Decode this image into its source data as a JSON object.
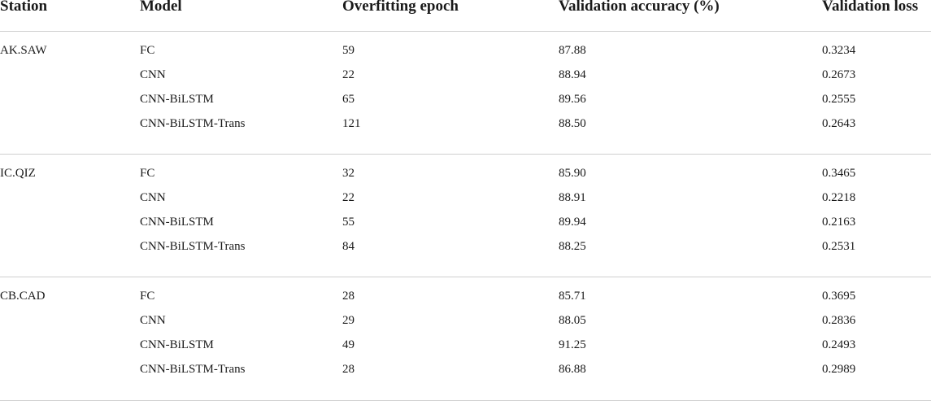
{
  "table": {
    "headers": {
      "station": "Station",
      "model": "Model",
      "epoch": "Overfitting epoch",
      "accuracy": "Validation accuracy (%)",
      "loss": "Validation loss"
    },
    "groups": [
      {
        "station": "AK.SAW",
        "rows": [
          {
            "model": "FC",
            "epoch": "59",
            "accuracy": "87.88",
            "loss": "0.3234"
          },
          {
            "model": "CNN",
            "epoch": "22",
            "accuracy": "88.94",
            "loss": "0.2673"
          },
          {
            "model": "CNN-BiLSTM",
            "epoch": "65",
            "accuracy": "89.56",
            "loss": "0.2555"
          },
          {
            "model": "CNN-BiLSTM-Trans",
            "epoch": "121",
            "accuracy": "88.50",
            "loss": "0.2643"
          }
        ]
      },
      {
        "station": "IC.QIZ",
        "rows": [
          {
            "model": "FC",
            "epoch": "32",
            "accuracy": "85.90",
            "loss": "0.3465"
          },
          {
            "model": "CNN",
            "epoch": "22",
            "accuracy": "88.91",
            "loss": "0.2218"
          },
          {
            "model": "CNN-BiLSTM",
            "epoch": "55",
            "accuracy": "89.94",
            "loss": "0.2163"
          },
          {
            "model": "CNN-BiLSTM-Trans",
            "epoch": "84",
            "accuracy": "88.25",
            "loss": "0.2531"
          }
        ]
      },
      {
        "station": "CB.CAD",
        "rows": [
          {
            "model": "FC",
            "epoch": "28",
            "accuracy": "85.71",
            "loss": "0.3695"
          },
          {
            "model": "CNN",
            "epoch": "29",
            "accuracy": "88.05",
            "loss": "0.2836"
          },
          {
            "model": "CNN-BiLSTM",
            "epoch": "49",
            "accuracy": "91.25",
            "loss": "0.2493"
          },
          {
            "model": "CNN-BiLSTM-Trans",
            "epoch": "28",
            "accuracy": "86.88",
            "loss": "0.2989"
          }
        ]
      }
    ]
  }
}
